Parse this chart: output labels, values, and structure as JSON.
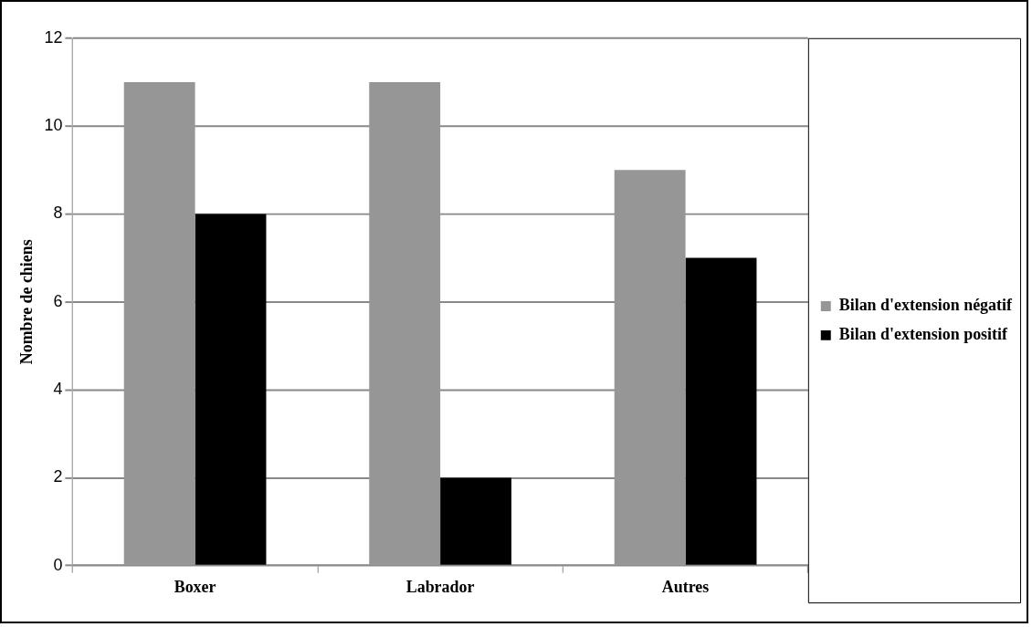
{
  "chart_data": {
    "type": "bar",
    "ylabel": "Nombre de chiens",
    "categories": [
      "Boxer",
      "Labrador",
      "Autres"
    ],
    "series": [
      {
        "name": "Bilan d'extension négatif",
        "color": "#969696",
        "values": [
          11,
          11,
          9
        ]
      },
      {
        "name": "Bilan d'extension positif",
        "color": "#000000",
        "values": [
          8,
          2,
          7
        ]
      }
    ],
    "ylim": [
      0,
      12
    ],
    "yticks": [
      0,
      2,
      4,
      6,
      8,
      10,
      12
    ],
    "grid": "y",
    "legend": "right"
  }
}
